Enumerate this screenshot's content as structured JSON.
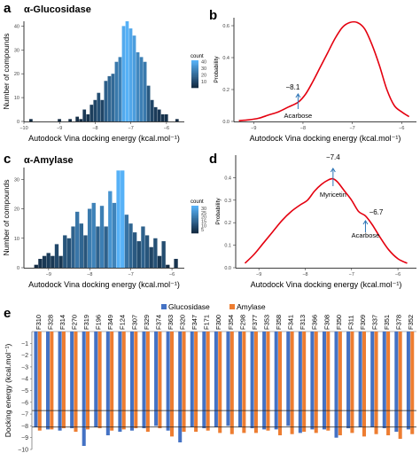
{
  "chart_data": [
    {
      "panel_letter": "a",
      "title": "α-Glucosidase",
      "type": "bar",
      "xlabel": "Autodock Vina docking energy (kcal.mol⁻¹)",
      "ylabel": "Number of compounds",
      "xlim": [
        -10,
        -5.5
      ],
      "ylim": [
        0,
        42
      ],
      "xticks": [
        -10,
        -9,
        -8,
        -7,
        -6
      ],
      "yticks": [
        0,
        10,
        20,
        30,
        40
      ],
      "legend": {
        "title": "count",
        "ticks": [
          10,
          20,
          30,
          40
        ],
        "placement": "right"
      },
      "colors": {
        "low": "#132B43",
        "high": "#56B1F7"
      },
      "bin_width": 0.1,
      "bins": [
        {
          "x": -9.8,
          "v": 1
        },
        {
          "x": -9.0,
          "v": 1
        },
        {
          "x": -8.7,
          "v": 1
        },
        {
          "x": -8.5,
          "v": 2
        },
        {
          "x": -8.4,
          "v": 1
        },
        {
          "x": -8.3,
          "v": 5
        },
        {
          "x": -8.2,
          "v": 3
        },
        {
          "x": -8.1,
          "v": 7
        },
        {
          "x": -8.0,
          "v": 9
        },
        {
          "x": -7.9,
          "v": 12
        },
        {
          "x": -7.8,
          "v": 9
        },
        {
          "x": -7.7,
          "v": 17
        },
        {
          "x": -7.6,
          "v": 19
        },
        {
          "x": -7.5,
          "v": 20
        },
        {
          "x": -7.4,
          "v": 25
        },
        {
          "x": -7.3,
          "v": 27
        },
        {
          "x": -7.2,
          "v": 40
        },
        {
          "x": -7.1,
          "v": 42
        },
        {
          "x": -7.0,
          "v": 39
        },
        {
          "x": -6.9,
          "v": 36
        },
        {
          "x": -6.8,
          "v": 29
        },
        {
          "x": -6.7,
          "v": 27
        },
        {
          "x": -6.6,
          "v": 25
        },
        {
          "x": -6.5,
          "v": 15
        },
        {
          "x": -6.4,
          "v": 9
        },
        {
          "x": -6.3,
          "v": 6
        },
        {
          "x": -6.2,
          "v": 5
        },
        {
          "x": -6.1,
          "v": 3
        },
        {
          "x": -6.0,
          "v": 3
        },
        {
          "x": -5.7,
          "v": 1
        }
      ]
    },
    {
      "panel_letter": "b",
      "type": "line",
      "xlabel": "Autodock Vina docking energy (kcal.mol⁻¹)",
      "ylabel": "Probability",
      "xlim": [
        -9.4,
        -5.7
      ],
      "ylim": [
        0,
        0.65
      ],
      "xticks": [
        -9,
        -8,
        -7,
        -6
      ],
      "yticks": [
        0.0,
        0.2,
        0.4,
        0.6
      ],
      "line_color": "#E4000F",
      "points": [
        [
          -9.3,
          0.005
        ],
        [
          -9.1,
          0.01
        ],
        [
          -8.9,
          0.02
        ],
        [
          -8.7,
          0.04
        ],
        [
          -8.5,
          0.06
        ],
        [
          -8.3,
          0.09
        ],
        [
          -8.1,
          0.12
        ],
        [
          -7.95,
          0.17
        ],
        [
          -7.8,
          0.25
        ],
        [
          -7.65,
          0.34
        ],
        [
          -7.5,
          0.43
        ],
        [
          -7.35,
          0.52
        ],
        [
          -7.2,
          0.59
        ],
        [
          -7.05,
          0.62
        ],
        [
          -6.9,
          0.62
        ],
        [
          -6.75,
          0.58
        ],
        [
          -6.6,
          0.48
        ],
        [
          -6.45,
          0.35
        ],
        [
          -6.3,
          0.2
        ],
        [
          -6.15,
          0.1
        ],
        [
          -6.0,
          0.06
        ],
        [
          -5.85,
          0.03
        ]
      ],
      "annotations": [
        {
          "label": "−8.1",
          "x": -8.1,
          "y": 0.12,
          "below_text": "Acarbose"
        }
      ]
    },
    {
      "panel_letter": "c",
      "title": "α-Amylase",
      "type": "bar",
      "xlabel": "Autodock Vina docking energy (kcal.mol⁻¹)",
      "ylabel": "Number of compounds",
      "xlim": [
        -9.6,
        -5.7
      ],
      "ylim": [
        0,
        34
      ],
      "xticks": [
        -9,
        -8,
        -7,
        -6
      ],
      "yticks": [
        0,
        10,
        20,
        30
      ],
      "legend": {
        "title": "count",
        "ticks": [
          5,
          10,
          15,
          20,
          25,
          30
        ],
        "placement": "right"
      },
      "colors": {
        "low": "#132B43",
        "high": "#56B1F7"
      },
      "bin_width": 0.1,
      "bins": [
        {
          "x": -9.3,
          "v": 1
        },
        {
          "x": -9.2,
          "v": 3
        },
        {
          "x": -9.1,
          "v": 4
        },
        {
          "x": -9.0,
          "v": 5
        },
        {
          "x": -8.9,
          "v": 4
        },
        {
          "x": -8.8,
          "v": 8
        },
        {
          "x": -8.7,
          "v": 4
        },
        {
          "x": -8.6,
          "v": 11
        },
        {
          "x": -8.5,
          "v": 10
        },
        {
          "x": -8.4,
          "v": 14
        },
        {
          "x": -8.3,
          "v": 19
        },
        {
          "x": -8.2,
          "v": 15
        },
        {
          "x": -8.1,
          "v": 11
        },
        {
          "x": -8.0,
          "v": 20
        },
        {
          "x": -7.9,
          "v": 22
        },
        {
          "x": -7.8,
          "v": 14
        },
        {
          "x": -7.7,
          "v": 21
        },
        {
          "x": -7.6,
          "v": 14
        },
        {
          "x": -7.5,
          "v": 26
        },
        {
          "x": -7.4,
          "v": 22
        },
        {
          "x": -7.3,
          "v": 33
        },
        {
          "x": -7.2,
          "v": 33
        },
        {
          "x": -7.1,
          "v": 18
        },
        {
          "x": -7.0,
          "v": 15
        },
        {
          "x": -6.9,
          "v": 12
        },
        {
          "x": -6.8,
          "v": 9
        },
        {
          "x": -6.7,
          "v": 14
        },
        {
          "x": -6.6,
          "v": 11
        },
        {
          "x": -6.5,
          "v": 7
        },
        {
          "x": -6.4,
          "v": 10
        },
        {
          "x": -6.3,
          "v": 4
        },
        {
          "x": -6.2,
          "v": 9
        },
        {
          "x": -6.1,
          "v": 1
        },
        {
          "x": -5.9,
          "v": 3
        }
      ]
    },
    {
      "panel_letter": "d",
      "type": "line",
      "xlabel": "Autodock Vina docking energy (kcal.mol⁻¹)",
      "ylabel": "Probability",
      "xlim": [
        -9.5,
        -5.6
      ],
      "ylim": [
        0,
        0.5
      ],
      "xticks": [
        -9,
        -8,
        -7,
        -6
      ],
      "yticks": [
        0.0,
        0.1,
        0.2,
        0.3,
        0.4
      ],
      "line_color": "#E4000F",
      "points": [
        [
          -9.3,
          0.02
        ],
        [
          -9.1,
          0.06
        ],
        [
          -8.9,
          0.11
        ],
        [
          -8.7,
          0.16
        ],
        [
          -8.5,
          0.21
        ],
        [
          -8.3,
          0.25
        ],
        [
          -8.1,
          0.28
        ],
        [
          -7.95,
          0.3
        ],
        [
          -7.8,
          0.34
        ],
        [
          -7.65,
          0.37
        ],
        [
          -7.5,
          0.39
        ],
        [
          -7.4,
          0.395
        ],
        [
          -7.3,
          0.38
        ],
        [
          -7.15,
          0.34
        ],
        [
          -7.0,
          0.3
        ],
        [
          -6.85,
          0.25
        ],
        [
          -6.7,
          0.23
        ],
        [
          -6.55,
          0.19
        ],
        [
          -6.4,
          0.14
        ],
        [
          -6.2,
          0.08
        ],
        [
          -6.0,
          0.04
        ],
        [
          -5.8,
          0.02
        ]
      ],
      "annotations": [
        {
          "label": "−7.4",
          "x": -7.4,
          "y": 0.395,
          "below_text": "Myricetin"
        },
        {
          "label": "−6.7",
          "x": -6.7,
          "y": 0.23,
          "below_text": "Acarbose"
        }
      ]
    },
    {
      "panel_letter": "e",
      "type": "bar",
      "ylabel": "Docking energy (kcal.mol⁻¹)",
      "ylim": [
        -10,
        0
      ],
      "yticks": [
        -1,
        -2,
        -3,
        -4,
        -5,
        -6,
        -7,
        -8,
        -9,
        -10
      ],
      "reference_lines": [
        -8.1,
        -6.7
      ],
      "categories": [
        "F310",
        "F328",
        "F314",
        "F270",
        "F319",
        "F196",
        "F349",
        "F124",
        "F307",
        "F329",
        "F374",
        "F363",
        "F320",
        "F347",
        "F171",
        "F300",
        "F354",
        "F298",
        "F377",
        "F353",
        "F358",
        "F341",
        "F313",
        "F366",
        "F308",
        "F350",
        "F311",
        "F309",
        "F337",
        "F351",
        "F378",
        "F352"
      ],
      "series": [
        {
          "name": "Glucosidase",
          "color": "#4472C4",
          "values": [
            -8.1,
            -8.3,
            -8.4,
            -8.2,
            -9.7,
            -8.1,
            -8.8,
            -8.5,
            -8.4,
            -8.2,
            -8.0,
            -8.4,
            -9.4,
            -8.1,
            -8.2,
            -8.1,
            -8.0,
            -8.1,
            -8.2,
            -8.3,
            -8.3,
            -8.0,
            -8.6,
            -8.3,
            -8.3,
            -9.0,
            -8.2,
            -8.1,
            -8.1,
            -8.2,
            -8.5,
            -8.3
          ]
        },
        {
          "name": "Amylase",
          "color": "#ED7D31",
          "values": [
            -8.4,
            -8.3,
            -8.2,
            -8.5,
            -8.3,
            -8.2,
            -8.4,
            -8.3,
            -8.2,
            -8.5,
            -8.2,
            -8.9,
            -8.5,
            -8.5,
            -8.4,
            -8.6,
            -8.7,
            -8.6,
            -8.6,
            -8.4,
            -8.8,
            -8.7,
            -8.5,
            -8.6,
            -8.4,
            -8.8,
            -8.6,
            -8.9,
            -8.7,
            -8.8,
            -9.1,
            -8.7
          ]
        }
      ]
    }
  ]
}
